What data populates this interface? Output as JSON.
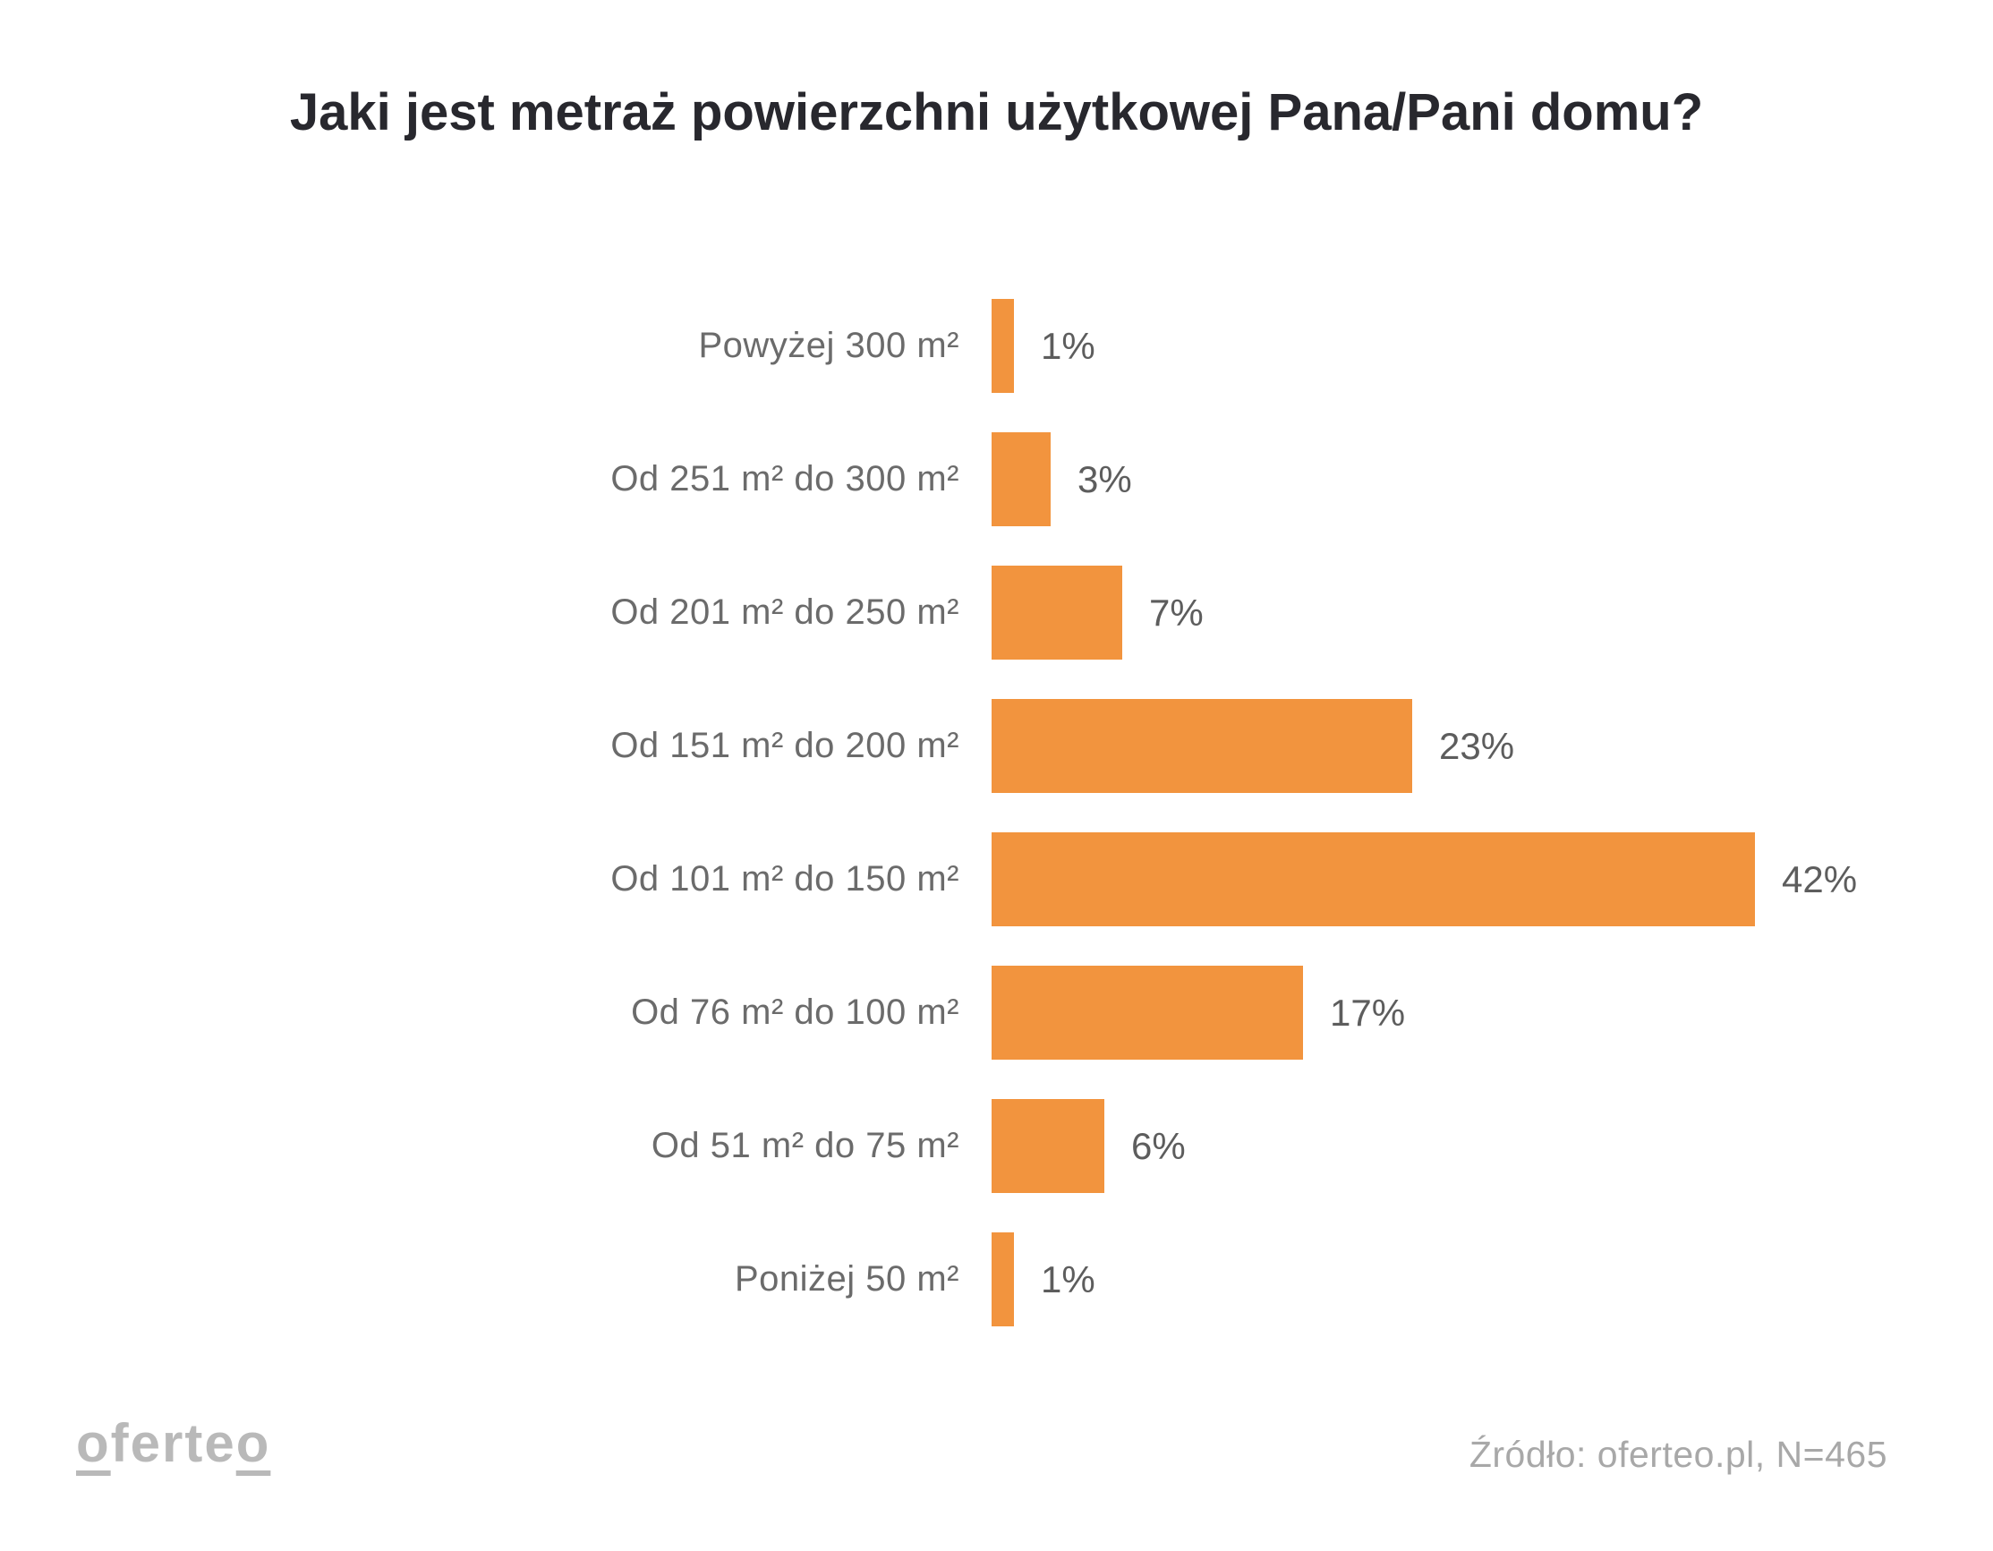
{
  "title": "Jaki jest metraż powierzchni użytkowej Pana/Pani domu?",
  "chart_data": {
    "type": "bar",
    "orientation": "horizontal",
    "title": "Jaki jest metraż powierzchni użytkowej Pana/Pani domu?",
    "categories": [
      "Powyżej 300 m²",
      "Od 251 m² do 300 m²",
      "Od 201 m² do 250 m²",
      "Od 151 m² do 200 m²",
      "Od 101 m² do 150 m²",
      "Od 76 m² do 100 m²",
      "Od 51 m² do 75 m²",
      "Poniżej 50 m²"
    ],
    "values": [
      1,
      3,
      7,
      23,
      42,
      17,
      6,
      1
    ],
    "value_labels": [
      "1%",
      "3%",
      "7%",
      "23%",
      "42%",
      "17%",
      "6%",
      "1%"
    ],
    "unit": "%",
    "xlim": [
      0,
      42
    ],
    "grid": false,
    "legend": false,
    "bar_color": "#F2943E"
  },
  "colors": {
    "bar": "#F2943E",
    "title_text": "#28282e",
    "category_text": "#6b6b6b",
    "value_text": "#5d5d5d",
    "source_text": "#a8a8a8",
    "logo_text": "#b9b9b9"
  },
  "footer": {
    "logo_text": "oferteo",
    "source": "Źródło: oferteo.pl, N=465"
  }
}
